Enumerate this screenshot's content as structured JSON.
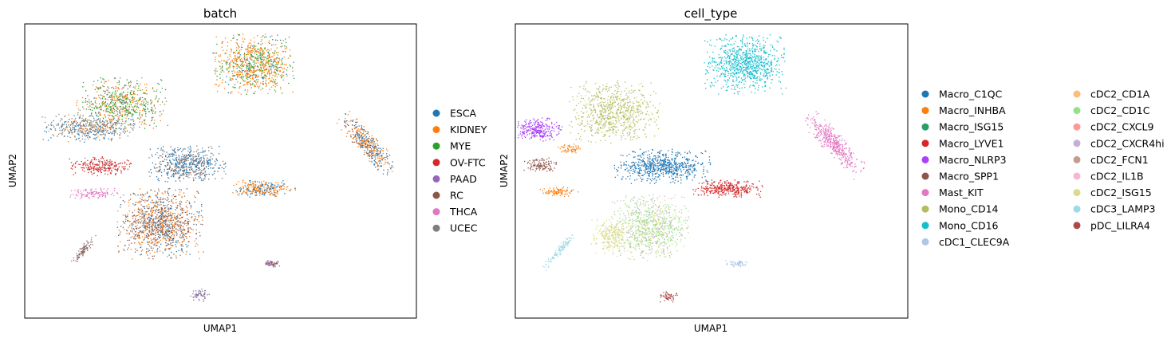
{
  "chart_data": [
    {
      "type": "scatter",
      "title": "batch",
      "xlabel": "UMAP1",
      "ylabel": "UMAP2",
      "grid": false,
      "legend_position": "right",
      "legend": [
        {
          "name": "ESCA",
          "color": "#1f77b4"
        },
        {
          "name": "KIDNEY",
          "color": "#ff7f0e"
        },
        {
          "name": "MYE",
          "color": "#2ca02c"
        },
        {
          "name": "OV-FTC",
          "color": "#d62728"
        },
        {
          "name": "PAAD",
          "color": "#9467bd"
        },
        {
          "name": "RC",
          "color": "#8c564b"
        },
        {
          "name": "THCA",
          "color": "#e377c2"
        },
        {
          "name": "UCEC",
          "color": "#7f7f7f"
        }
      ]
    },
    {
      "type": "scatter",
      "title": "cell_type",
      "xlabel": "UMAP1",
      "ylabel": "UMAP2",
      "grid": false,
      "legend_position": "right",
      "legend": [
        {
          "name": "Macro_C1QC",
          "color": "#1f77b4"
        },
        {
          "name": "Macro_INHBA",
          "color": "#ff7f0e"
        },
        {
          "name": "Macro_ISG15",
          "color": "#279e68"
        },
        {
          "name": "Macro_LYVE1",
          "color": "#d62728"
        },
        {
          "name": "Macro_NLRP3",
          "color": "#aa40fc"
        },
        {
          "name": "Macro_SPP1",
          "color": "#8c564b"
        },
        {
          "name": "Mast_KIT",
          "color": "#e377c2"
        },
        {
          "name": "Mono_CD14",
          "color": "#b5bd61"
        },
        {
          "name": "Mono_CD16",
          "color": "#17becf"
        },
        {
          "name": "cDC1_CLEC9A",
          "color": "#aec7e8"
        },
        {
          "name": "cDC2_CD1A",
          "color": "#ffbb78"
        },
        {
          "name": "cDC2_CD1C",
          "color": "#98df8a"
        },
        {
          "name": "cDC2_CXCL9",
          "color": "#ff9896"
        },
        {
          "name": "cDC2_CXCR4hi",
          "color": "#c5b0d5"
        },
        {
          "name": "cDC2_FCN1",
          "color": "#c49c94"
        },
        {
          "name": "cDC2_IL1B",
          "color": "#f7b6d2"
        },
        {
          "name": "cDC2_ISG15",
          "color": "#dbdb8d"
        },
        {
          "name": "cDC3_LAMP3",
          "color": "#9edae5"
        },
        {
          "name": "pDC_LILRA4",
          "color": "#ad494a"
        }
      ]
    }
  ]
}
